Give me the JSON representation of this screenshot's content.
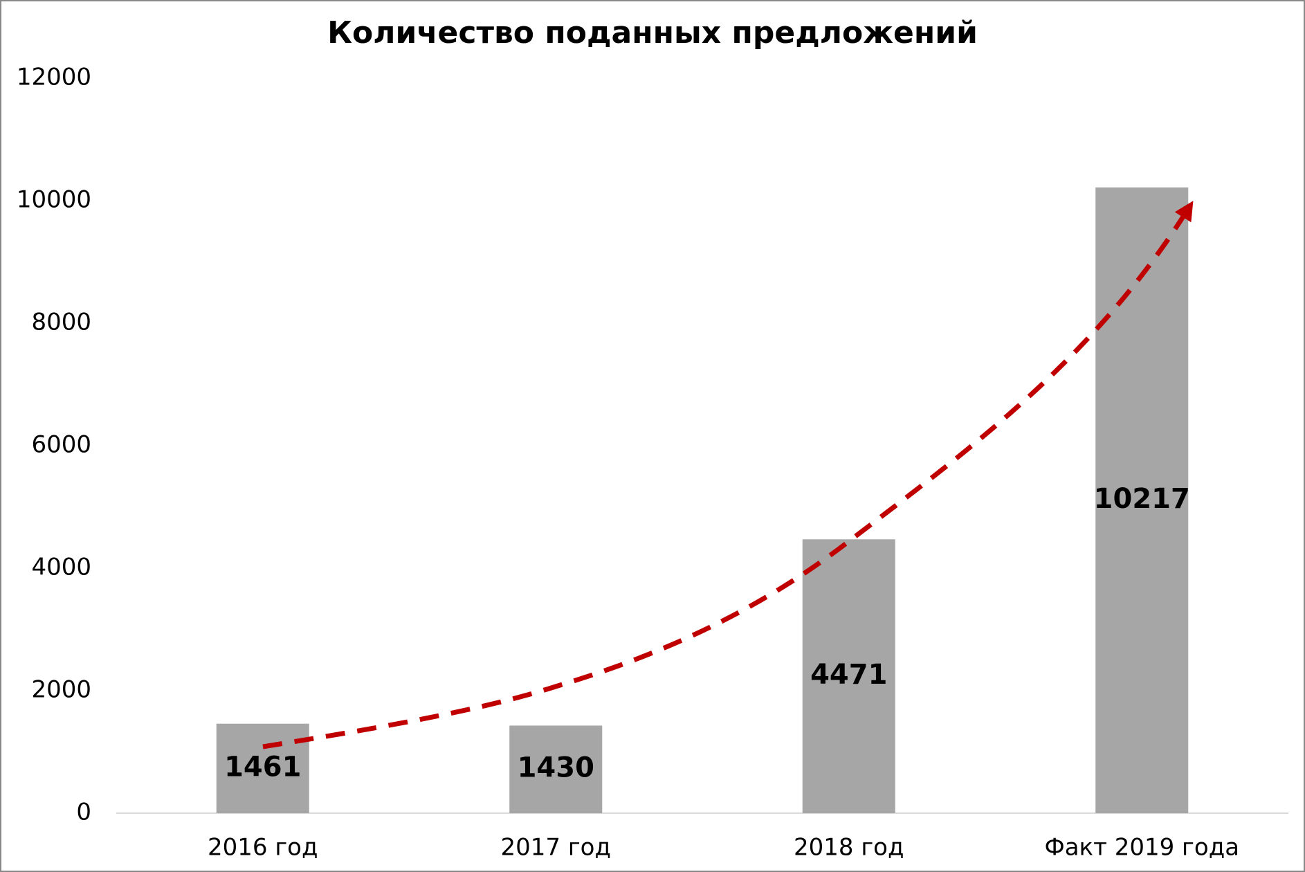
{
  "chart_data": {
    "type": "bar",
    "title": "Количество поданных предложений",
    "categories": [
      "2016 год",
      "2017 год",
      "2018 год",
      "Факт 2019 года"
    ],
    "values": [
      1461,
      1430,
      4471,
      10217
    ],
    "color": "#a6a6a6",
    "ylim": [
      0,
      12000
    ],
    "yticks": [
      0,
      2000,
      4000,
      6000,
      8000,
      10000,
      12000
    ],
    "grid": false
  }
}
